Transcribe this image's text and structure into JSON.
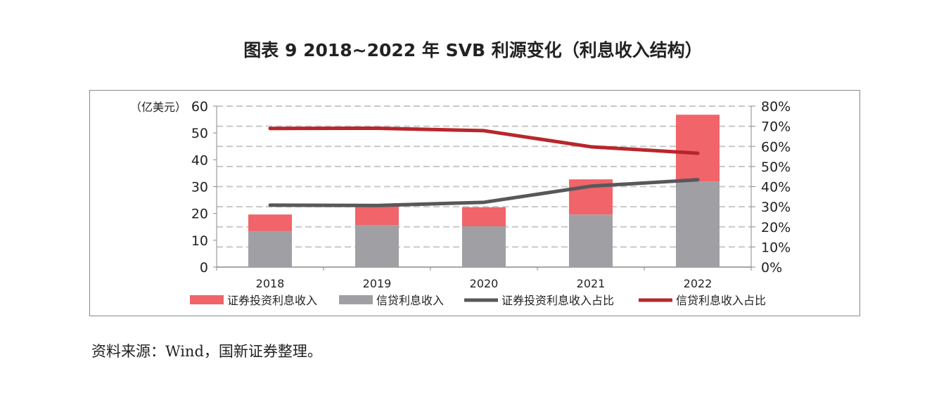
{
  "title": "图表 9  2018~2022 年 SVB 利源变化（利息收入结构）",
  "source": "资料来源：Wind，国新证券整理。",
  "chart_data": {
    "type": "bar",
    "title": "图表 9  2018~2022 年 SVB 利源变化（利息收入结构）",
    "ylabel": "（亿美元）",
    "categories": [
      "2018",
      "2019",
      "2020",
      "2021",
      "2022"
    ],
    "ylim": [
      0,
      60
    ],
    "yticks": [
      "0",
      "10",
      "20",
      "30",
      "40",
      "50",
      "60"
    ],
    "y2lim": [
      0,
      80
    ],
    "y2ticks": [
      "0%",
      "10%",
      "20%",
      "30%",
      "40%",
      "50%",
      "60%",
      "70%",
      "80%"
    ],
    "grid": true,
    "legend_position": "bottom",
    "series": [
      {
        "name": "证券投资利息收入",
        "type": "bar",
        "stack": true,
        "axis": "left",
        "color": "#f0646a",
        "values": [
          6.2,
          7.3,
          7.1,
          13.1,
          24.9
        ]
      },
      {
        "name": "信贷利息收入",
        "type": "bar",
        "stack": true,
        "axis": "left",
        "color": "#a0a0a4",
        "values": [
          13.4,
          15.7,
          15.2,
          19.6,
          31.9
        ]
      },
      {
        "name": "证券投资利息收入占比",
        "type": "line",
        "axis": "right",
        "color": "#58585a",
        "values": [
          30.8,
          30.6,
          32.2,
          40.2,
          43.4
        ]
      },
      {
        "name": "信贷利息收入占比",
        "type": "line",
        "axis": "right",
        "color": "#b8262c",
        "values": [
          68.9,
          69.0,
          67.8,
          59.8,
          56.6
        ]
      }
    ]
  }
}
